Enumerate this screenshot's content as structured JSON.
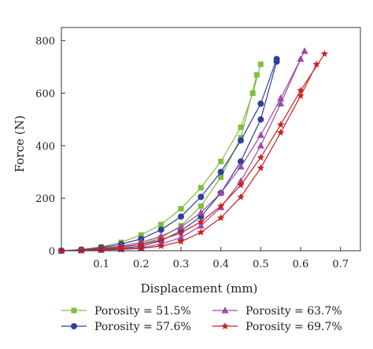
{
  "chart_data": {
    "type": "line",
    "xlabel": "Displacement (mm)",
    "ylabel": "Force (N)",
    "xlim": [
      0,
      0.75
    ],
    "ylim": [
      0,
      850
    ],
    "xticks": [
      0.1,
      0.2,
      0.3,
      0.4,
      0.5,
      0.6,
      0.7
    ],
    "yticks": [
      0,
      200,
      400,
      600,
      800
    ],
    "xtick_labels": [
      "0.1",
      "0.2",
      "0.3",
      "0.4",
      "0.5",
      "0.6",
      "0.7"
    ],
    "ytick_labels": [
      "0",
      "200",
      "400",
      "600",
      "800"
    ],
    "grid": false,
    "legend_position": "bottom",
    "series": [
      {
        "name": "Porosity = 51.5%",
        "color": "#7fbf3f",
        "marker": "square",
        "loading": [
          [
            0.0,
            0
          ],
          [
            0.05,
            5
          ],
          [
            0.1,
            15
          ],
          [
            0.15,
            32
          ],
          [
            0.2,
            60
          ],
          [
            0.25,
            100
          ],
          [
            0.3,
            160
          ],
          [
            0.35,
            240
          ],
          [
            0.4,
            340
          ],
          [
            0.45,
            470
          ],
          [
            0.48,
            600
          ],
          [
            0.5,
            710
          ]
        ],
        "unloading": [
          [
            0.0,
            0
          ],
          [
            0.05,
            2
          ],
          [
            0.1,
            5
          ],
          [
            0.15,
            12
          ],
          [
            0.2,
            25
          ],
          [
            0.25,
            50
          ],
          [
            0.3,
            95
          ],
          [
            0.35,
            170
          ],
          [
            0.4,
            280
          ],
          [
            0.45,
            430
          ],
          [
            0.49,
            670
          ]
        ]
      },
      {
        "name": "Porosity = 57.6%",
        "color": "#2e3f9c",
        "marker": "circle",
        "loading": [
          [
            0.0,
            0
          ],
          [
            0.05,
            4
          ],
          [
            0.1,
            12
          ],
          [
            0.15,
            25
          ],
          [
            0.2,
            45
          ],
          [
            0.25,
            80
          ],
          [
            0.3,
            130
          ],
          [
            0.35,
            205
          ],
          [
            0.4,
            300
          ],
          [
            0.45,
            420
          ],
          [
            0.5,
            560
          ],
          [
            0.54,
            730
          ]
        ],
        "unloading": [
          [
            0.0,
            0
          ],
          [
            0.05,
            2
          ],
          [
            0.1,
            4
          ],
          [
            0.15,
            9
          ],
          [
            0.2,
            18
          ],
          [
            0.25,
            38
          ],
          [
            0.3,
            75
          ],
          [
            0.35,
            130
          ],
          [
            0.4,
            220
          ],
          [
            0.45,
            340
          ],
          [
            0.5,
            500
          ],
          [
            0.54,
            720
          ]
        ]
      },
      {
        "name": "Porosity = 63.7%",
        "color": "#a04aa8",
        "marker": "triangle",
        "loading": [
          [
            0.0,
            0
          ],
          [
            0.05,
            3
          ],
          [
            0.1,
            9
          ],
          [
            0.15,
            18
          ],
          [
            0.2,
            32
          ],
          [
            0.25,
            55
          ],
          [
            0.3,
            90
          ],
          [
            0.35,
            145
          ],
          [
            0.4,
            220
          ],
          [
            0.45,
            320
          ],
          [
            0.5,
            440
          ],
          [
            0.55,
            580
          ],
          [
            0.61,
            760
          ]
        ],
        "unloading": [
          [
            0.0,
            0
          ],
          [
            0.05,
            1
          ],
          [
            0.1,
            3
          ],
          [
            0.15,
            6
          ],
          [
            0.2,
            12
          ],
          [
            0.25,
            25
          ],
          [
            0.3,
            50
          ],
          [
            0.35,
            95
          ],
          [
            0.4,
            165
          ],
          [
            0.45,
            265
          ],
          [
            0.5,
            400
          ],
          [
            0.55,
            560
          ],
          [
            0.6,
            730
          ]
        ]
      },
      {
        "name": "Porosity = 69.7%",
        "color": "#cc2020",
        "marker": "star",
        "loading": [
          [
            0.0,
            0
          ],
          [
            0.05,
            2
          ],
          [
            0.1,
            7
          ],
          [
            0.15,
            14
          ],
          [
            0.2,
            25
          ],
          [
            0.25,
            42
          ],
          [
            0.3,
            68
          ],
          [
            0.35,
            110
          ],
          [
            0.4,
            170
          ],
          [
            0.45,
            250
          ],
          [
            0.5,
            355
          ],
          [
            0.55,
            480
          ],
          [
            0.6,
            610
          ],
          [
            0.66,
            750
          ]
        ],
        "unloading": [
          [
            0.0,
            0
          ],
          [
            0.05,
            1
          ],
          [
            0.1,
            2
          ],
          [
            0.15,
            5
          ],
          [
            0.2,
            9
          ],
          [
            0.25,
            18
          ],
          [
            0.3,
            35
          ],
          [
            0.35,
            70
          ],
          [
            0.4,
            125
          ],
          [
            0.45,
            205
          ],
          [
            0.5,
            315
          ],
          [
            0.55,
            450
          ],
          [
            0.6,
            590
          ],
          [
            0.64,
            710
          ]
        ]
      }
    ]
  }
}
